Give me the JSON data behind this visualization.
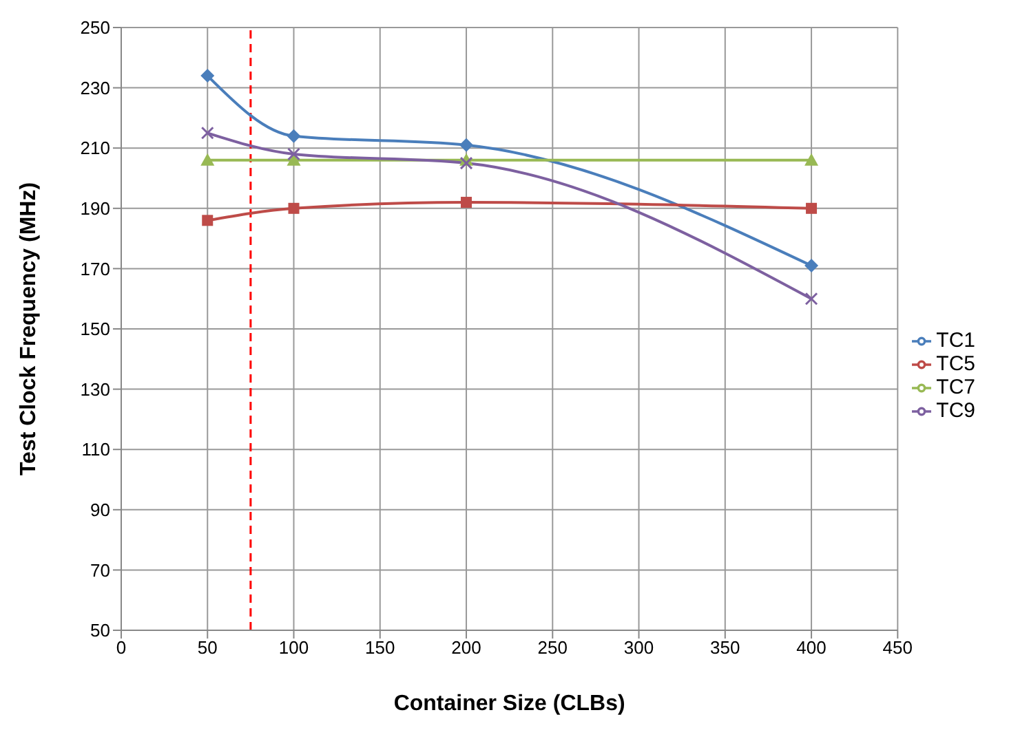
{
  "chart_data": {
    "type": "line",
    "xlabel": "Container Size (CLBs)",
    "ylabel": "Test Clock Frequency (MHz)",
    "x": [
      50,
      100,
      200,
      400
    ],
    "series": [
      {
        "name": "TC1",
        "color": "#4a7ebb",
        "values": [
          234,
          214,
          211,
          171
        ],
        "marker": "diamond"
      },
      {
        "name": "TC5",
        "color": "#be4b48",
        "values": [
          186,
          190,
          192,
          190
        ],
        "marker": "square"
      },
      {
        "name": "TC7",
        "color": "#98b954",
        "values": [
          206,
          206,
          206,
          206
        ],
        "marker": "triangle"
      },
      {
        "name": "TC9",
        "color": "#7d60a0",
        "values": [
          215,
          208,
          205,
          160
        ],
        "marker": "cross"
      }
    ],
    "xlim": [
      0,
      450
    ],
    "xticks": [
      0,
      50,
      100,
      150,
      200,
      250,
      300,
      350,
      400,
      450
    ],
    "ylim": [
      50,
      250
    ],
    "yticks": [
      50,
      70,
      90,
      110,
      130,
      150,
      170,
      190,
      210,
      230,
      250
    ],
    "ref_lines": [
      {
        "axis": "x",
        "value": 75,
        "color": "#ff0000",
        "line_style": "dashed"
      }
    ],
    "grid": true,
    "legend": "right",
    "line_style": "solid"
  }
}
